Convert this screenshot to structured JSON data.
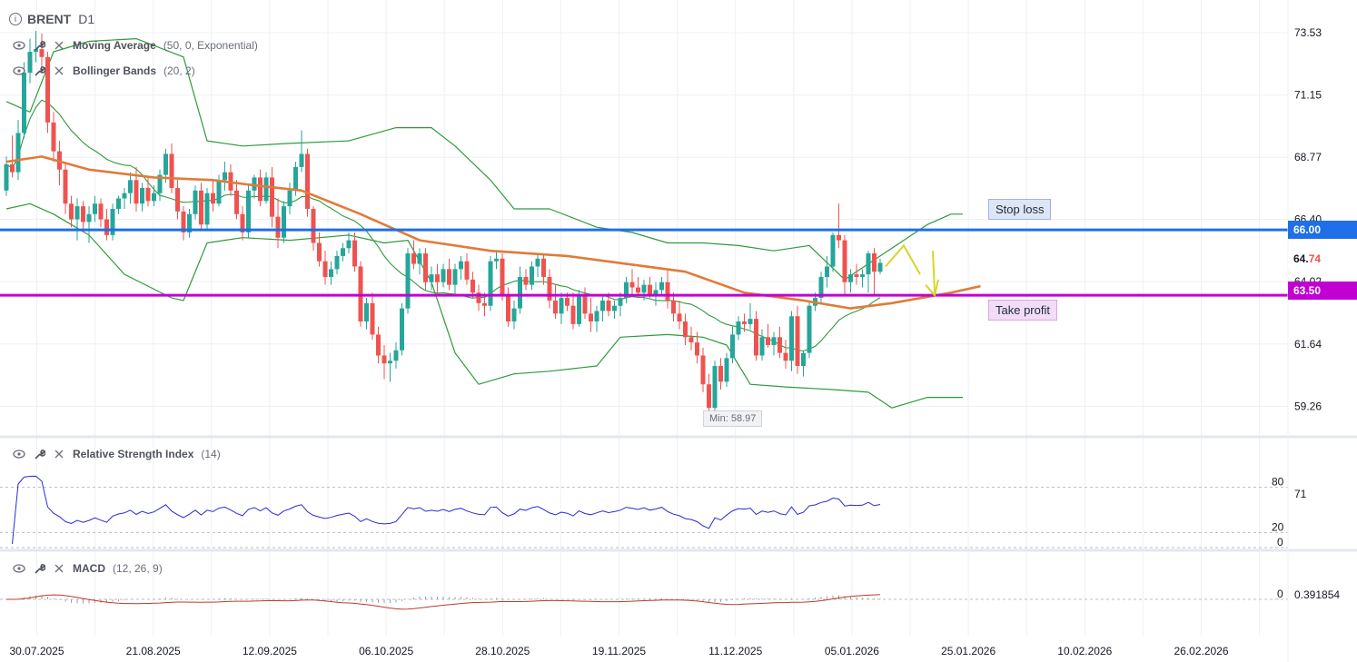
{
  "header": {
    "symbol": "BRENT",
    "timeframe": "D1",
    "info_icon": "info-circle-icon"
  },
  "indicators": {
    "ma": {
      "name": "Moving Average",
      "params": "(50, 0, Exponential)"
    },
    "bb": {
      "name": "Bollinger Bands",
      "params": "(20, 2)"
    },
    "rsi": {
      "name": "Relative Strength Index",
      "params": "(14)"
    },
    "macd": {
      "name": "MACD",
      "params": "(12, 26, 9)"
    }
  },
  "icons": {
    "visibility": "eye-icon",
    "settings": "wrench-icon",
    "remove": "close-icon"
  },
  "annotations": {
    "stop_loss_label": "Stop loss",
    "take_profit_label": "Take profit",
    "min_label": "Min: 58.97"
  },
  "price_tags": {
    "stop_loss": "66.00",
    "take_profit": "63.50",
    "current_prefix": "64.",
    "current_suffix": "74"
  },
  "colors": {
    "bull": "#26a69a",
    "bear": "#ef5350",
    "ma": "#e07b39",
    "bollinger": "#2e9b3a",
    "stop_loss": "#1e6fe8",
    "take_profit": "#c200d4",
    "rsi": "#2a2ad6",
    "macd_signal": "#c0392b",
    "arrow": "#d6d62a"
  },
  "chart_data": {
    "type": "candlestick",
    "title": "BRENT D1",
    "price_axis": {
      "ylim": [
        58.2,
        74.5
      ],
      "ticks": [
        73.53,
        71.15,
        68.77,
        66.4,
        64.02,
        61.64,
        59.26
      ]
    },
    "x_ticks": [
      "30.07.2025",
      "21.08.2025",
      "12.09.2025",
      "06.10.2025",
      "28.10.2025",
      "19.11.2025",
      "11.12.2025",
      "05.01.2026",
      "25.01.2026",
      "10.02.2026",
      "26.02.2026"
    ],
    "ohlc": [
      [
        67.5,
        68.8,
        67.3,
        68.5
      ],
      [
        68.5,
        69.6,
        68.0,
        68.2
      ],
      [
        68.2,
        70.2,
        67.9,
        69.7
      ],
      [
        69.7,
        72.4,
        69.5,
        72.0
      ],
      [
        72.0,
        73.3,
        71.6,
        72.8
      ],
      [
        72.8,
        73.6,
        72.4,
        72.9
      ],
      [
        72.9,
        73.5,
        72.2,
        72.6
      ],
      [
        72.6,
        72.8,
        69.7,
        70.1
      ],
      [
        70.1,
        70.5,
        68.6,
        69.0
      ],
      [
        69.0,
        69.4,
        67.7,
        68.3
      ],
      [
        68.3,
        68.6,
        66.6,
        67.0
      ],
      [
        67.0,
        67.3,
        66.1,
        66.4
      ],
      [
        66.4,
        67.2,
        65.6,
        66.9
      ],
      [
        66.9,
        67.1,
        65.9,
        66.3
      ],
      [
        66.3,
        66.9,
        65.5,
        66.6
      ],
      [
        66.6,
        67.3,
        66.3,
        67.0
      ],
      [
        67.0,
        67.2,
        66.1,
        66.4
      ],
      [
        66.4,
        66.8,
        65.6,
        65.8
      ],
      [
        65.8,
        67.0,
        65.6,
        66.8
      ],
      [
        66.8,
        67.3,
        66.6,
        67.2
      ],
      [
        67.2,
        67.6,
        66.8,
        67.4
      ],
      [
        67.4,
        68.2,
        67.0,
        67.9
      ],
      [
        67.9,
        68.4,
        66.7,
        67.0
      ],
      [
        67.0,
        67.8,
        66.7,
        67.6
      ],
      [
        67.6,
        68.0,
        66.9,
        67.1
      ],
      [
        67.1,
        67.7,
        66.9,
        67.4
      ],
      [
        67.4,
        68.3,
        67.1,
        68.1
      ],
      [
        68.1,
        69.1,
        67.8,
        68.9
      ],
      [
        68.9,
        69.3,
        67.4,
        67.6
      ],
      [
        67.6,
        67.9,
        66.4,
        66.7
      ],
      [
        66.7,
        66.9,
        65.6,
        65.9
      ],
      [
        65.9,
        66.8,
        65.7,
        66.6
      ],
      [
        66.6,
        67.7,
        66.4,
        67.5
      ],
      [
        67.5,
        67.8,
        66.0,
        66.2
      ],
      [
        66.2,
        67.6,
        66.0,
        67.4
      ],
      [
        67.4,
        67.9,
        66.7,
        67.0
      ],
      [
        67.0,
        68.1,
        66.9,
        67.9
      ],
      [
        67.9,
        68.6,
        67.5,
        68.2
      ],
      [
        68.2,
        68.5,
        67.3,
        67.5
      ],
      [
        67.5,
        67.9,
        66.4,
        66.6
      ],
      [
        66.6,
        66.9,
        65.6,
        65.9
      ],
      [
        65.9,
        67.7,
        65.7,
        67.5
      ],
      [
        67.5,
        68.1,
        67.2,
        68.0
      ],
      [
        68.0,
        68.3,
        66.9,
        67.1
      ],
      [
        67.1,
        68.2,
        67.0,
        68.0
      ],
      [
        68.0,
        68.4,
        66.1,
        66.5
      ],
      [
        66.5,
        67.2,
        65.3,
        65.7
      ],
      [
        65.7,
        67.1,
        65.5,
        66.9
      ],
      [
        66.9,
        67.8,
        66.6,
        67.5
      ],
      [
        67.5,
        68.6,
        67.3,
        68.4
      ],
      [
        68.4,
        69.8,
        68.2,
        68.9
      ],
      [
        68.9,
        69.1,
        66.5,
        66.8
      ],
      [
        66.8,
        66.9,
        65.2,
        65.5
      ],
      [
        65.5,
        65.9,
        64.6,
        64.8
      ],
      [
        64.8,
        65.2,
        63.9,
        64.2
      ],
      [
        64.2,
        64.8,
        63.9,
        64.5
      ],
      [
        64.5,
        65.2,
        64.3,
        65.0
      ],
      [
        65.0,
        65.5,
        64.8,
        65.3
      ],
      [
        65.3,
        65.9,
        65.1,
        65.6
      ],
      [
        65.6,
        65.9,
        64.4,
        64.6
      ],
      [
        64.6,
        64.8,
        62.3,
        62.5
      ],
      [
        62.5,
        63.4,
        62.2,
        63.2
      ],
      [
        63.2,
        63.6,
        61.8,
        62.0
      ],
      [
        62.0,
        62.3,
        60.9,
        61.2
      ],
      [
        61.2,
        61.6,
        60.3,
        60.9
      ],
      [
        60.9,
        61.3,
        60.2,
        61.0
      ],
      [
        61.0,
        61.7,
        60.7,
        61.4
      ],
      [
        61.4,
        63.2,
        61.2,
        63.0
      ],
      [
        63.0,
        65.3,
        62.8,
        65.1
      ],
      [
        65.1,
        65.6,
        64.5,
        64.7
      ],
      [
        64.7,
        65.3,
        64.3,
        65.1
      ],
      [
        65.1,
        65.3,
        63.7,
        64.0
      ],
      [
        64.0,
        64.6,
        63.7,
        64.3
      ],
      [
        64.3,
        64.7,
        63.5,
        64.0
      ],
      [
        64.0,
        64.7,
        63.8,
        64.5
      ],
      [
        64.5,
        64.9,
        63.7,
        63.9
      ],
      [
        63.9,
        64.7,
        63.5,
        64.5
      ],
      [
        64.5,
        65.0,
        64.1,
        64.8
      ],
      [
        64.8,
        65.1,
        63.9,
        64.1
      ],
      [
        64.1,
        64.4,
        63.4,
        63.6
      ],
      [
        63.6,
        63.9,
        62.9,
        63.2
      ],
      [
        63.2,
        63.6,
        62.7,
        63.1
      ],
      [
        63.1,
        65.0,
        62.9,
        64.8
      ],
      [
        64.8,
        65.2,
        64.5,
        64.9
      ],
      [
        64.9,
        65.1,
        63.3,
        63.5
      ],
      [
        63.5,
        63.8,
        62.3,
        62.5
      ],
      [
        62.5,
        63.3,
        62.2,
        63.0
      ],
      [
        63.0,
        64.6,
        62.8,
        64.2
      ],
      [
        64.2,
        64.5,
        63.7,
        63.9
      ],
      [
        63.9,
        64.8,
        63.7,
        64.6
      ],
      [
        64.6,
        65.1,
        64.2,
        64.9
      ],
      [
        64.9,
        65.1,
        63.9,
        64.2
      ],
      [
        64.2,
        64.5,
        63.0,
        63.3
      ],
      [
        63.3,
        63.9,
        62.6,
        62.8
      ],
      [
        62.8,
        63.6,
        62.4,
        63.4
      ],
      [
        63.4,
        63.6,
        62.9,
        63.1
      ],
      [
        63.1,
        63.6,
        62.2,
        62.4
      ],
      [
        62.4,
        63.7,
        62.3,
        63.5
      ],
      [
        63.5,
        63.8,
        62.6,
        62.8
      ],
      [
        62.8,
        63.4,
        62.1,
        62.5
      ],
      [
        62.5,
        63.1,
        62.1,
        62.9
      ],
      [
        62.9,
        63.5,
        62.5,
        63.3
      ],
      [
        63.3,
        63.6,
        62.7,
        62.9
      ],
      [
        62.9,
        63.3,
        62.6,
        63.1
      ],
      [
        63.1,
        63.6,
        62.7,
        63.4
      ],
      [
        63.4,
        64.2,
        63.2,
        64.0
      ],
      [
        64.0,
        64.5,
        63.5,
        63.8
      ],
      [
        63.8,
        64.2,
        63.4,
        63.6
      ],
      [
        63.6,
        64.1,
        63.3,
        63.9
      ],
      [
        63.9,
        64.2,
        63.4,
        63.5
      ],
      [
        63.5,
        64.0,
        63.1,
        63.7
      ],
      [
        63.7,
        64.2,
        63.5,
        64.0
      ],
      [
        64.0,
        64.5,
        63.0,
        63.3
      ],
      [
        63.3,
        63.6,
        62.5,
        62.8
      ],
      [
        62.8,
        63.3,
        62.2,
        62.5
      ],
      [
        62.5,
        62.8,
        61.6,
        61.9
      ],
      [
        61.9,
        62.3,
        61.4,
        61.7
      ],
      [
        61.7,
        62.1,
        60.9,
        61.2
      ],
      [
        61.2,
        61.5,
        59.8,
        60.1
      ],
      [
        60.1,
        60.5,
        58.97,
        59.2
      ],
      [
        59.2,
        61.0,
        59.1,
        60.8
      ],
      [
        60.8,
        61.1,
        59.9,
        60.2
      ],
      [
        60.2,
        61.3,
        60.0,
        61.1
      ],
      [
        61.1,
        62.3,
        60.9,
        62.0
      ],
      [
        62.0,
        62.7,
        61.8,
        62.5
      ],
      [
        62.5,
        62.8,
        62.1,
        62.4
      ],
      [
        62.4,
        63.2,
        62.2,
        62.6
      ],
      [
        62.6,
        62.9,
        61.0,
        61.2
      ],
      [
        61.2,
        62.2,
        61.0,
        61.9
      ],
      [
        61.9,
        62.4,
        61.5,
        61.6
      ],
      [
        61.6,
        62.1,
        61.2,
        61.9
      ],
      [
        61.9,
        62.3,
        61.1,
        61.3
      ],
      [
        61.3,
        61.8,
        60.7,
        61.0
      ],
      [
        61.0,
        62.9,
        60.6,
        62.7
      ],
      [
        62.7,
        63.1,
        60.5,
        60.8
      ],
      [
        60.8,
        61.4,
        60.4,
        61.3
      ],
      [
        61.3,
        63.3,
        61.1,
        63.1
      ],
      [
        63.1,
        63.6,
        62.9,
        63.4
      ],
      [
        63.4,
        64.4,
        63.2,
        64.2
      ],
      [
        64.2,
        65.0,
        63.8,
        64.6
      ],
      [
        64.6,
        65.9,
        64.4,
        65.8
      ],
      [
        65.8,
        67.0,
        65.3,
        65.6
      ],
      [
        65.6,
        65.8,
        63.5,
        64.0
      ],
      [
        64.0,
        64.5,
        63.6,
        64.3
      ],
      [
        64.3,
        64.7,
        63.9,
        64.2
      ],
      [
        64.2,
        64.5,
        63.8,
        64.3
      ],
      [
        64.3,
        65.2,
        63.6,
        65.1
      ],
      [
        65.1,
        65.3,
        63.5,
        64.4
      ],
      [
        64.4,
        64.9,
        64.3,
        64.74
      ]
    ],
    "ma_line": [
      [
        0,
        68.6
      ],
      [
        6,
        68.8
      ],
      [
        14,
        68.3
      ],
      [
        25,
        68.0
      ],
      [
        35,
        67.9
      ],
      [
        42,
        67.7
      ],
      [
        50,
        67.5
      ],
      [
        60,
        66.6
      ],
      [
        70,
        65.6
      ],
      [
        82,
        65.2
      ],
      [
        95,
        65.0
      ],
      [
        105,
        64.7
      ],
      [
        115,
        64.4
      ],
      [
        125,
        63.6
      ],
      [
        135,
        63.3
      ],
      [
        143,
        63.0
      ],
      [
        150,
        63.2
      ],
      [
        160,
        63.6
      ],
      [
        165,
        63.85
      ]
    ],
    "bb_upper": [
      [
        0,
        70.9
      ],
      [
        4,
        70.5
      ],
      [
        8,
        72.8
      ],
      [
        14,
        73.2
      ],
      [
        22,
        73.3
      ],
      [
        30,
        72.6
      ],
      [
        34,
        69.4
      ],
      [
        40,
        69.2
      ],
      [
        48,
        69.3
      ],
      [
        58,
        69.4
      ],
      [
        66,
        69.9
      ],
      [
        72,
        69.9
      ],
      [
        76,
        69.2
      ],
      [
        82,
        67.9
      ],
      [
        86,
        66.8
      ],
      [
        92,
        66.8
      ],
      [
        100,
        66.1
      ],
      [
        106,
        65.9
      ],
      [
        112,
        65.5
      ],
      [
        118,
        65.5
      ],
      [
        124,
        65.4
      ],
      [
        130,
        65.2
      ],
      [
        136,
        65.4
      ],
      [
        142,
        64.1
      ],
      [
        148,
        65.0
      ],
      [
        152,
        65.6
      ],
      [
        156,
        66.2
      ],
      [
        160,
        66.6
      ],
      [
        162,
        66.6
      ]
    ],
    "bb_lower": [
      [
        0,
        66.8
      ],
      [
        4,
        67.0
      ],
      [
        8,
        66.6
      ],
      [
        14,
        65.8
      ],
      [
        20,
        64.3
      ],
      [
        28,
        63.4
      ],
      [
        30,
        63.3
      ],
      [
        34,
        65.5
      ],
      [
        40,
        65.7
      ],
      [
        48,
        65.6
      ],
      [
        58,
        65.8
      ],
      [
        64,
        65.5
      ],
      [
        68,
        65.6
      ],
      [
        72,
        64.0
      ],
      [
        76,
        61.3
      ],
      [
        80,
        60.1
      ],
      [
        86,
        60.5
      ],
      [
        92,
        60.6
      ],
      [
        100,
        60.8
      ],
      [
        104,
        61.9
      ],
      [
        112,
        62.0
      ],
      [
        118,
        61.9
      ],
      [
        122,
        61.6
      ],
      [
        126,
        60.1
      ],
      [
        132,
        60.0
      ],
      [
        140,
        59.9
      ],
      [
        146,
        59.8
      ],
      [
        150,
        59.2
      ],
      [
        156,
        59.6
      ],
      [
        162,
        59.6
      ]
    ],
    "rsi": {
      "upper_level": 80,
      "lower_level": 20,
      "zero_level": 0,
      "last_value": 71,
      "axis_labels": [
        "80",
        "71",
        "20",
        "0"
      ]
    },
    "macd": {
      "params": "(12, 26, 9)",
      "last_value": "0.391854",
      "zero_label": "0"
    }
  }
}
